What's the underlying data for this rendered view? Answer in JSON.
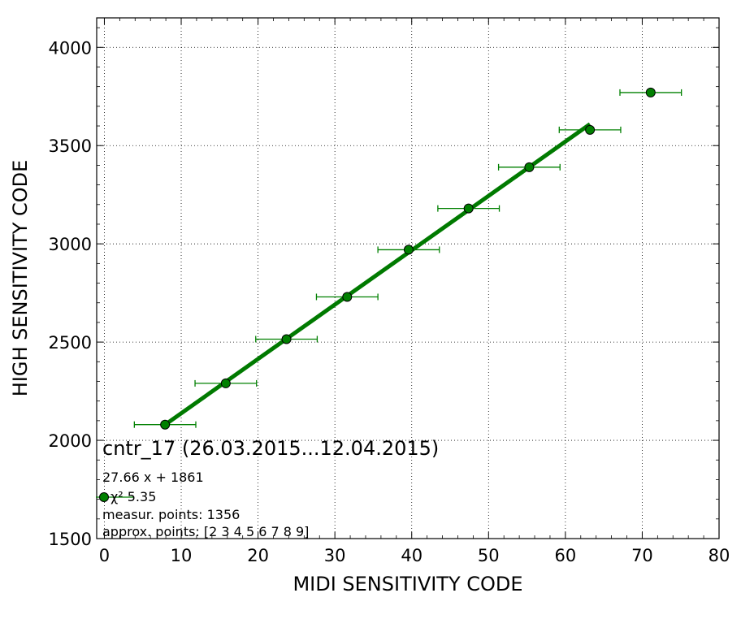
{
  "chart_data": {
    "type": "scatter",
    "title": "",
    "xlabel": "MIDI SENSITIVITY CODE",
    "ylabel": "HIGH SENSITIVITY CODE",
    "xlim": [
      -1,
      80
    ],
    "ylim": [
      1500,
      4150
    ],
    "x_ticks": [
      0,
      10,
      20,
      30,
      40,
      50,
      60,
      70,
      80
    ],
    "y_ticks": [
      1500,
      2000,
      2500,
      3000,
      3500,
      4000
    ],
    "grid": true,
    "legend_placement": "bottom-left",
    "colors": {
      "points": "#008000",
      "fit_line": "#007a00",
      "errorbars": "#008000"
    },
    "series": [
      {
        "kind": "points-with-x-errorbars",
        "x": [
          7.9,
          15.8,
          23.7,
          31.6,
          39.6,
          47.4,
          55.3,
          63.2,
          71.1
        ],
        "y": [
          2080,
          2290,
          2515,
          2730,
          2970,
          3180,
          3390,
          3580,
          3770
        ],
        "x_err": [
          4.0,
          4.0,
          4.0,
          4.0,
          4.0,
          4.0,
          4.0,
          4.0,
          4.0
        ]
      },
      {
        "kind": "fit-line",
        "x": [
          7.9,
          63.2
        ],
        "y": [
          2079.5,
          3609.1
        ]
      }
    ],
    "legend": {
      "title": "cntr_17 (26.03.2015...12.04.2015)",
      "lines": [
        "27.66 x + 1861",
        "χ² 5.35",
        "measur. points: 1356",
        "approx. points: [2 3 4 5 6 7 8 9]"
      ]
    }
  }
}
